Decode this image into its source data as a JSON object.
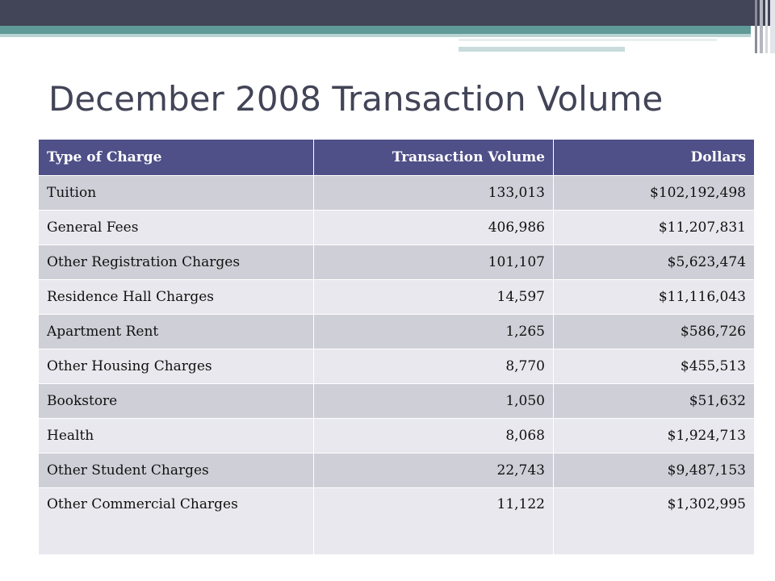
{
  "slide": {
    "title": "December 2008 Transaction Volume"
  },
  "table": {
    "headers": {
      "type": "Type of Charge",
      "volume": "Transaction Volume",
      "dollars": "Dollars"
    },
    "rows": [
      {
        "type": "Tuition",
        "volume": "133,013",
        "dollars": "$102,192,498"
      },
      {
        "type": "General Fees",
        "volume": "406,986",
        "dollars": "$11,207,831"
      },
      {
        "type": "Other Registration Charges",
        "volume": "101,107",
        "dollars": "$5,623,474"
      },
      {
        "type": "Residence Hall Charges",
        "volume": "14,597",
        "dollars": "$11,116,043"
      },
      {
        "type": "Apartment Rent",
        "volume": "1,265",
        "dollars": "$586,726"
      },
      {
        "type": "Other Housing Charges",
        "volume": "8,770",
        "dollars": "$455,513"
      },
      {
        "type": "Bookstore",
        "volume": "1,050",
        "dollars": "$51,632"
      },
      {
        "type": "Health",
        "volume": "8,068",
        "dollars": "$1,924,713"
      },
      {
        "type": "Other Student Charges",
        "volume": "22,743",
        "dollars": "$9,487,153"
      },
      {
        "type": "Other Commercial Charges",
        "volume": "11,122",
        "dollars": "$1,302,995"
      }
    ]
  },
  "colors": {
    "header_band": "#424457",
    "accent_teal": "#5f9a99",
    "table_header": "#4f5088",
    "row_dark": "#cfcfd8",
    "row_light": "#e8e8ee"
  }
}
